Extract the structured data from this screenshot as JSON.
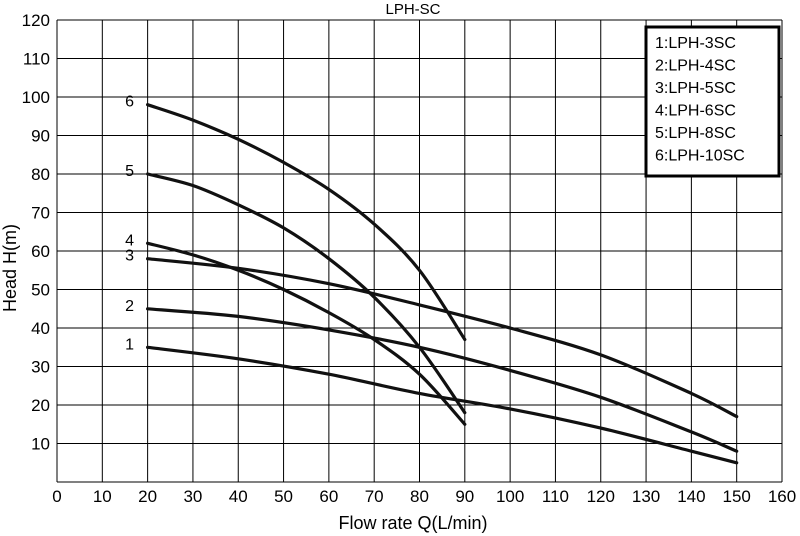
{
  "chart_data": {
    "type": "line",
    "title": "LPH-SC",
    "xlabel": "Flow rate Q(L/min)",
    "ylabel": "Head H(m)",
    "xlim": [
      0,
      160
    ],
    "ylim": [
      0,
      120
    ],
    "x_ticks": [
      0,
      10,
      20,
      30,
      40,
      50,
      60,
      70,
      80,
      90,
      100,
      110,
      120,
      130,
      140,
      150,
      160
    ],
    "y_ticks": [
      10,
      20,
      30,
      40,
      50,
      60,
      70,
      80,
      90,
      100,
      110,
      120
    ],
    "grid": true,
    "legend_position": "top-right",
    "legend": [
      "1:LPH-3SC",
      "2:LPH-4SC",
      "3:LPH-5SC",
      "4:LPH-6SC",
      "5:LPH-8SC",
      "6:LPH-10SC"
    ],
    "series": [
      {
        "label": "1",
        "x": [
          20,
          40,
          60,
          80,
          100,
          120,
          140,
          150
        ],
        "y": [
          35,
          32,
          28,
          23,
          19,
          14,
          8,
          5
        ]
      },
      {
        "label": "2",
        "x": [
          20,
          40,
          60,
          80,
          100,
          120,
          140,
          150
        ],
        "y": [
          45,
          43,
          39.5,
          35,
          29,
          22,
          13,
          8
        ]
      },
      {
        "label": "3",
        "x": [
          20,
          40,
          60,
          80,
          100,
          120,
          140,
          150
        ],
        "y": [
          58,
          55.5,
          51.5,
          46,
          40,
          33,
          23,
          17
        ]
      },
      {
        "label": "4",
        "x": [
          20,
          30,
          40,
          50,
          60,
          70,
          80,
          90
        ],
        "y": [
          62,
          59,
          55,
          50,
          44,
          37,
          28,
          15
        ]
      },
      {
        "label": "5",
        "x": [
          20,
          30,
          40,
          50,
          60,
          70,
          80,
          90
        ],
        "y": [
          80,
          77,
          72,
          66,
          58,
          48,
          35,
          18
        ]
      },
      {
        "label": "6",
        "x": [
          20,
          30,
          40,
          50,
          60,
          70,
          80,
          90
        ],
        "y": [
          98,
          94,
          89,
          83,
          76,
          67,
          55,
          37
        ]
      }
    ]
  }
}
